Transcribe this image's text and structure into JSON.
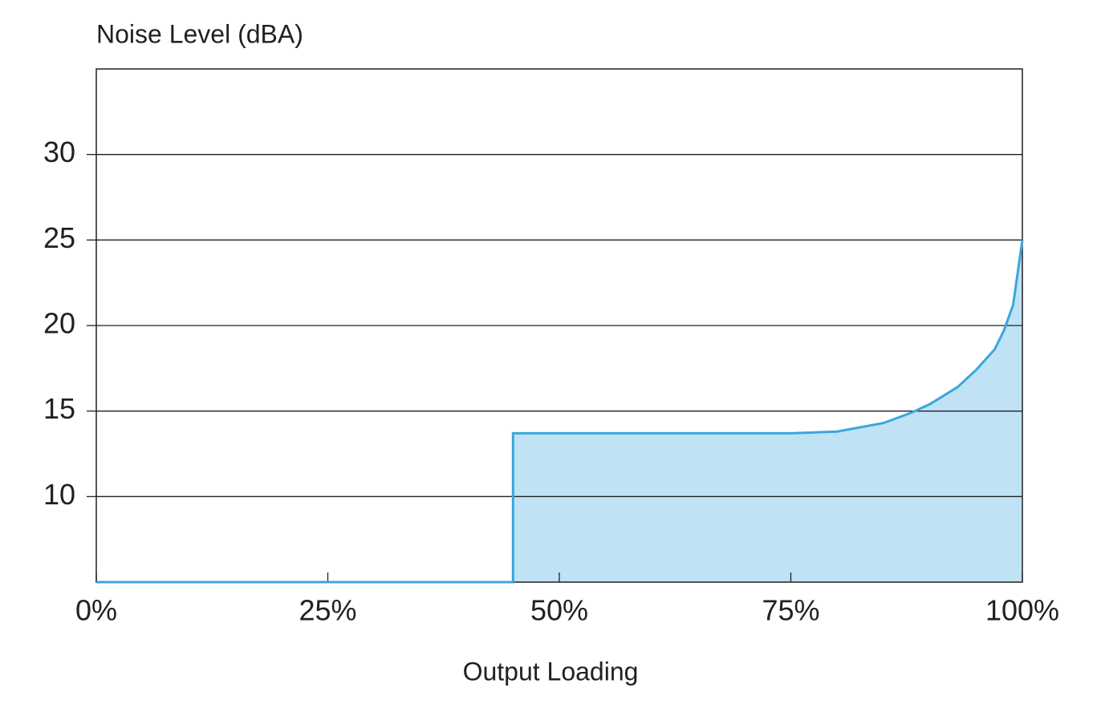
{
  "chart_data": {
    "type": "area",
    "y_label": "Noise Level (dBA)",
    "x_label": "Output Loading",
    "x": [
      0,
      45,
      45,
      75,
      80,
      85,
      88,
      90,
      93,
      95,
      97,
      98,
      99,
      100
    ],
    "values": [
      5,
      5,
      13.7,
      13.7,
      13.8,
      14.3,
      14.9,
      15.4,
      16.4,
      17.4,
      18.6,
      19.7,
      21.2,
      25
    ],
    "color": "#3aa6dc",
    "fill_color": "#bfe3f5",
    "xlim": [
      0,
      100
    ],
    "xticks": [
      {
        "value": 0,
        "label": "0%"
      },
      {
        "value": 25,
        "label": "25%"
      },
      {
        "value": 50,
        "label": "50%"
      },
      {
        "value": 75,
        "label": "75%"
      },
      {
        "value": 100,
        "label": "100%"
      }
    ],
    "ylim": [
      5,
      35
    ],
    "yticks": [
      10,
      15,
      20,
      25,
      30
    ],
    "grid": true
  }
}
